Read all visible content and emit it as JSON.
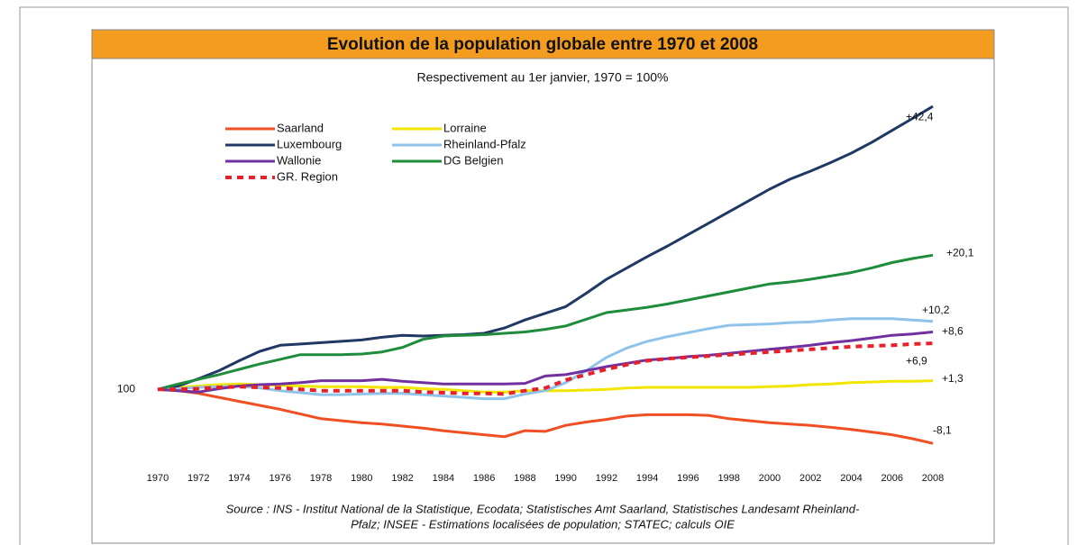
{
  "chart_data": {
    "type": "line",
    "title": "Evolution de la population globale entre 1970 et 2008",
    "subtitle": "Respectivement au 1er janvier, 1970 = 100%",
    "x": [
      1970,
      1971,
      1972,
      1973,
      1974,
      1975,
      1976,
      1977,
      1978,
      1979,
      1980,
      1981,
      1982,
      1983,
      1984,
      1985,
      1986,
      1987,
      1988,
      1989,
      1990,
      1991,
      1992,
      1993,
      1994,
      1995,
      1996,
      1997,
      1998,
      1999,
      2000,
      2001,
      2002,
      2003,
      2004,
      2005,
      2006,
      2007,
      2008
    ],
    "xlim": [
      1970,
      2008
    ],
    "xticks": [
      1970,
      1972,
      1974,
      1976,
      1978,
      1980,
      1982,
      1984,
      1986,
      1988,
      1990,
      1992,
      1994,
      1996,
      1998,
      2000,
      2002,
      2004,
      2006,
      2008
    ],
    "ylim": [
      89.5,
      143.5
    ],
    "yticks": [
      100
    ],
    "grid": false,
    "legend": "upper left",
    "series": [
      {
        "name": "Saarland",
        "color": "#f04e23",
        "style": "solid",
        "end_label": "-8,1",
        "values": [
          100,
          99.8,
          99.4,
          98.8,
          98.2,
          97.6,
          97.0,
          96.3,
          95.6,
          95.3,
          95.0,
          94.8,
          94.5,
          94.2,
          93.8,
          93.5,
          93.2,
          92.9,
          93.8,
          93.7,
          94.6,
          95.1,
          95.5,
          96.0,
          96.2,
          96.2,
          96.2,
          96.1,
          95.6,
          95.3,
          95.0,
          94.8,
          94.6,
          94.3,
          94.0,
          93.6,
          93.2,
          92.6,
          91.9
        ]
      },
      {
        "name": "Lorraine",
        "color": "#f2e600",
        "style": "solid",
        "end_label": "+1,3",
        "values": [
          100,
          100.3,
          100.5,
          100.7,
          100.8,
          100.7,
          100.6,
          100.5,
          100.4,
          100.4,
          100.4,
          100.3,
          100.3,
          100.1,
          100.0,
          99.8,
          99.6,
          99.6,
          99.8,
          99.8,
          99.8,
          99.9,
          100.0,
          100.2,
          100.3,
          100.3,
          100.3,
          100.3,
          100.3,
          100.3,
          100.4,
          100.5,
          100.7,
          100.8,
          101.0,
          101.1,
          101.2,
          101.2,
          101.3
        ]
      },
      {
        "name": "Luxembourg",
        "color": "#1f3864",
        "style": "solid",
        "end_label": "+42,4",
        "values": [
          100,
          100.5,
          101.6,
          102.8,
          104.3,
          105.7,
          106.6,
          106.8,
          107.0,
          107.2,
          107.4,
          107.8,
          108.1,
          108.0,
          108.1,
          108.2,
          108.4,
          109.2,
          110.4,
          111.4,
          112.4,
          114.4,
          116.5,
          118.2,
          119.9,
          121.5,
          123.2,
          124.9,
          126.6,
          128.3,
          130.0,
          131.5,
          132.7,
          134.0,
          135.4,
          137.0,
          138.8,
          140.6,
          142.4
        ]
      },
      {
        "name": "Rheinland-Pfalz",
        "color": "#8fc3ea",
        "style": "solid",
        "end_label": "+10,2",
        "values": [
          100,
          100.1,
          100.3,
          100.4,
          100.5,
          100.2,
          99.8,
          99.5,
          99.2,
          99.2,
          99.3,
          99.4,
          99.4,
          99.2,
          99.0,
          98.8,
          98.6,
          98.6,
          99.3,
          99.8,
          101.0,
          102.8,
          104.8,
          106.2,
          107.2,
          107.9,
          108.5,
          109.1,
          109.6,
          109.7,
          109.8,
          110.0,
          110.1,
          110.4,
          110.6,
          110.6,
          110.6,
          110.4,
          110.2
        ]
      },
      {
        "name": "Wallonie",
        "color": "#7030a0",
        "style": "solid",
        "end_label": "+8,6",
        "values": [
          100,
          99.8,
          99.6,
          100.1,
          100.5,
          100.7,
          100.8,
          101.0,
          101.3,
          101.3,
          101.3,
          101.5,
          101.2,
          101.0,
          100.8,
          100.8,
          100.8,
          100.8,
          100.9,
          102.0,
          102.2,
          102.8,
          103.4,
          103.9,
          104.4,
          104.6,
          104.9,
          105.1,
          105.4,
          105.7,
          106.0,
          106.3,
          106.6,
          107.0,
          107.3,
          107.7,
          108.1,
          108.3,
          108.6
        ]
      },
      {
        "name": "DG Belgien",
        "color": "#1e8c3a",
        "style": "solid",
        "end_label": "+20,1",
        "values": [
          100,
          100.8,
          101.5,
          102.2,
          103.0,
          103.8,
          104.5,
          105.2,
          105.2,
          105.2,
          105.3,
          105.6,
          106.3,
          107.5,
          108.0,
          108.1,
          108.2,
          108.4,
          108.6,
          109.0,
          109.5,
          110.5,
          111.5,
          111.9,
          112.3,
          112.8,
          113.4,
          114.0,
          114.6,
          115.2,
          115.8,
          116.1,
          116.5,
          117.0,
          117.5,
          118.2,
          119.0,
          119.6,
          120.1
        ]
      },
      {
        "name": "GR. Region",
        "color": "#e8202a",
        "style": "dashed",
        "end_label": "+6,9",
        "values": [
          100,
          100.0,
          100.1,
          100.3,
          100.4,
          100.3,
          100.2,
          100.0,
          99.8,
          99.8,
          99.8,
          99.8,
          99.8,
          99.6,
          99.5,
          99.4,
          99.4,
          99.3,
          99.8,
          100.2,
          101.4,
          102.2,
          103.0,
          103.7,
          104.3,
          104.6,
          104.8,
          105.0,
          105.2,
          105.4,
          105.6,
          105.8,
          106.0,
          106.2,
          106.4,
          106.5,
          106.6,
          106.8,
          106.9
        ]
      }
    ],
    "source": [
      "Source : INS - Institut National de la Statistique, Ecodata; Statistisches Amt Saarland, Statistisches Landesamt Rheinland-",
      "Pfalz; INSEE - Estimations localisées de population; STATEC; calculs OIE"
    ]
  }
}
